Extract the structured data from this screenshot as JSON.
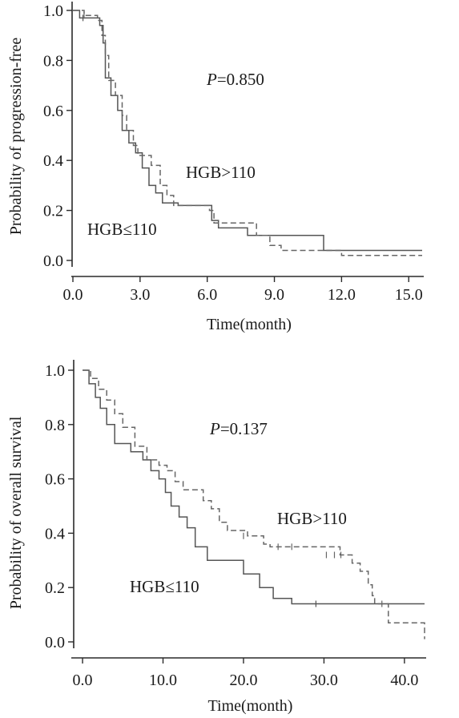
{
  "chart_data": [
    {
      "type": "line",
      "subtype": "kaplan-meier",
      "title": "",
      "xlabel": "Time(month)",
      "ylabel": "Probability of progression-free",
      "xlim": [
        0,
        15.6
      ],
      "ylim": [
        0,
        1.0
      ],
      "x_ticks": [
        "0.0",
        "3.0",
        "6.0",
        "9.0",
        "12.0",
        "15.0"
      ],
      "y_ticks": [
        "0.0",
        "0.2",
        "0.4",
        "0.6",
        "0.8",
        "1.0"
      ],
      "p_prefix": "P",
      "p_value": "=0.850",
      "series": [
        {
          "label": "HGB≤110",
          "style": "solid",
          "color": "#555555",
          "steps": [
            [
              0,
              1.0
            ],
            [
              0.3,
              0.97
            ],
            [
              1.2,
              0.94
            ],
            [
              1.35,
              0.87
            ],
            [
              1.45,
              0.73
            ],
            [
              1.7,
              0.66
            ],
            [
              2.0,
              0.6
            ],
            [
              2.2,
              0.52
            ],
            [
              2.5,
              0.47
            ],
            [
              2.8,
              0.43
            ],
            [
              3.1,
              0.37
            ],
            [
              3.4,
              0.3
            ],
            [
              3.7,
              0.27
            ],
            [
              4.0,
              0.23
            ],
            [
              4.7,
              0.22
            ],
            [
              6.2,
              0.16
            ],
            [
              6.5,
              0.13
            ],
            [
              7.8,
              0.1
            ],
            [
              11.2,
              0.04
            ],
            [
              15.6,
              0.04
            ]
          ],
          "censors": [
            [
              0.45,
              0.97
            ]
          ]
        },
        {
          "label": "HGB>110",
          "style": "dashed",
          "color": "#666666",
          "steps": [
            [
              0,
              1.0
            ],
            [
              0.5,
              0.98
            ],
            [
              1.1,
              0.96
            ],
            [
              1.3,
              0.9
            ],
            [
              1.45,
              0.82
            ],
            [
              1.6,
              0.72
            ],
            [
              1.9,
              0.66
            ],
            [
              2.2,
              0.58
            ],
            [
              2.4,
              0.52
            ],
            [
              2.7,
              0.46
            ],
            [
              2.9,
              0.42
            ],
            [
              3.5,
              0.38
            ],
            [
              3.9,
              0.3
            ],
            [
              4.2,
              0.26
            ],
            [
              4.5,
              0.22
            ],
            [
              6.1,
              0.2
            ],
            [
              6.3,
              0.15
            ],
            [
              8.2,
              0.1
            ],
            [
              8.8,
              0.06
            ],
            [
              9.3,
              0.04
            ],
            [
              12.0,
              0.02
            ],
            [
              15.6,
              0.02
            ]
          ],
          "censors": [
            [
              0.5,
              0.98
            ]
          ]
        }
      ]
    },
    {
      "type": "line",
      "subtype": "kaplan-meier",
      "title": "",
      "xlabel": "Time(month)",
      "ylabel": "Probability of overall survival",
      "xlim": [
        -1.2,
        42.5
      ],
      "ylim": [
        0,
        1.0
      ],
      "x_ticks": [
        "0.0",
        "10.0",
        "20.0",
        "30.0",
        "40.0"
      ],
      "y_ticks": [
        "0.0",
        "0.2",
        "0.4",
        "0.6",
        "0.8",
        "1.0"
      ],
      "p_prefix": "P",
      "p_value": "=0.137",
      "series": [
        {
          "label": "HGB≤110",
          "style": "solid",
          "color": "#555555",
          "steps": [
            [
              0,
              1.0
            ],
            [
              0.8,
              0.95
            ],
            [
              1.6,
              0.9
            ],
            [
              2.2,
              0.86
            ],
            [
              3.0,
              0.8
            ],
            [
              4.0,
              0.73
            ],
            [
              6.0,
              0.7
            ],
            [
              7.5,
              0.67
            ],
            [
              8.5,
              0.63
            ],
            [
              9.5,
              0.6
            ],
            [
              10.3,
              0.55
            ],
            [
              11.0,
              0.5
            ],
            [
              12.0,
              0.46
            ],
            [
              13.0,
              0.42
            ],
            [
              14.0,
              0.35
            ],
            [
              15.5,
              0.3
            ],
            [
              20.0,
              0.25
            ],
            [
              22.0,
              0.2
            ],
            [
              23.7,
              0.16
            ],
            [
              26.0,
              0.14
            ],
            [
              38.0,
              0.14
            ],
            [
              42.5,
              0.14
            ]
          ],
          "censors": [
            [
              29.0,
              0.14
            ]
          ]
        },
        {
          "label": "HGB>110",
          "style": "dashed",
          "color": "#666666",
          "steps": [
            [
              0,
              1.0
            ],
            [
              1.0,
              0.97
            ],
            [
              2.0,
              0.93
            ],
            [
              3.0,
              0.89
            ],
            [
              4.0,
              0.84
            ],
            [
              5.0,
              0.79
            ],
            [
              6.5,
              0.72
            ],
            [
              8.0,
              0.67
            ],
            [
              9.5,
              0.65
            ],
            [
              10.5,
              0.63
            ],
            [
              11.5,
              0.59
            ],
            [
              12.5,
              0.56
            ],
            [
              15.0,
              0.52
            ],
            [
              16.0,
              0.49
            ],
            [
              17.0,
              0.44
            ],
            [
              18.0,
              0.41
            ],
            [
              20.5,
              0.39
            ],
            [
              22.5,
              0.36
            ],
            [
              23.3,
              0.35
            ],
            [
              32.0,
              0.32
            ],
            [
              33.5,
              0.29
            ],
            [
              34.5,
              0.26
            ],
            [
              35.5,
              0.21
            ],
            [
              36.0,
              0.17
            ],
            [
              36.3,
              0.14
            ],
            [
              38.0,
              0.07
            ],
            [
              42.2,
              0.07
            ],
            [
              42.5,
              0.01
            ]
          ],
          "censors": [
            [
              20.0,
              0.39
            ],
            [
              24.3,
              0.35
            ],
            [
              26.0,
              0.35
            ],
            [
              30.3,
              0.32
            ],
            [
              31.3,
              0.32
            ],
            [
              32.1,
              0.32
            ],
            [
              37.2,
              0.14
            ]
          ]
        }
      ]
    }
  ]
}
